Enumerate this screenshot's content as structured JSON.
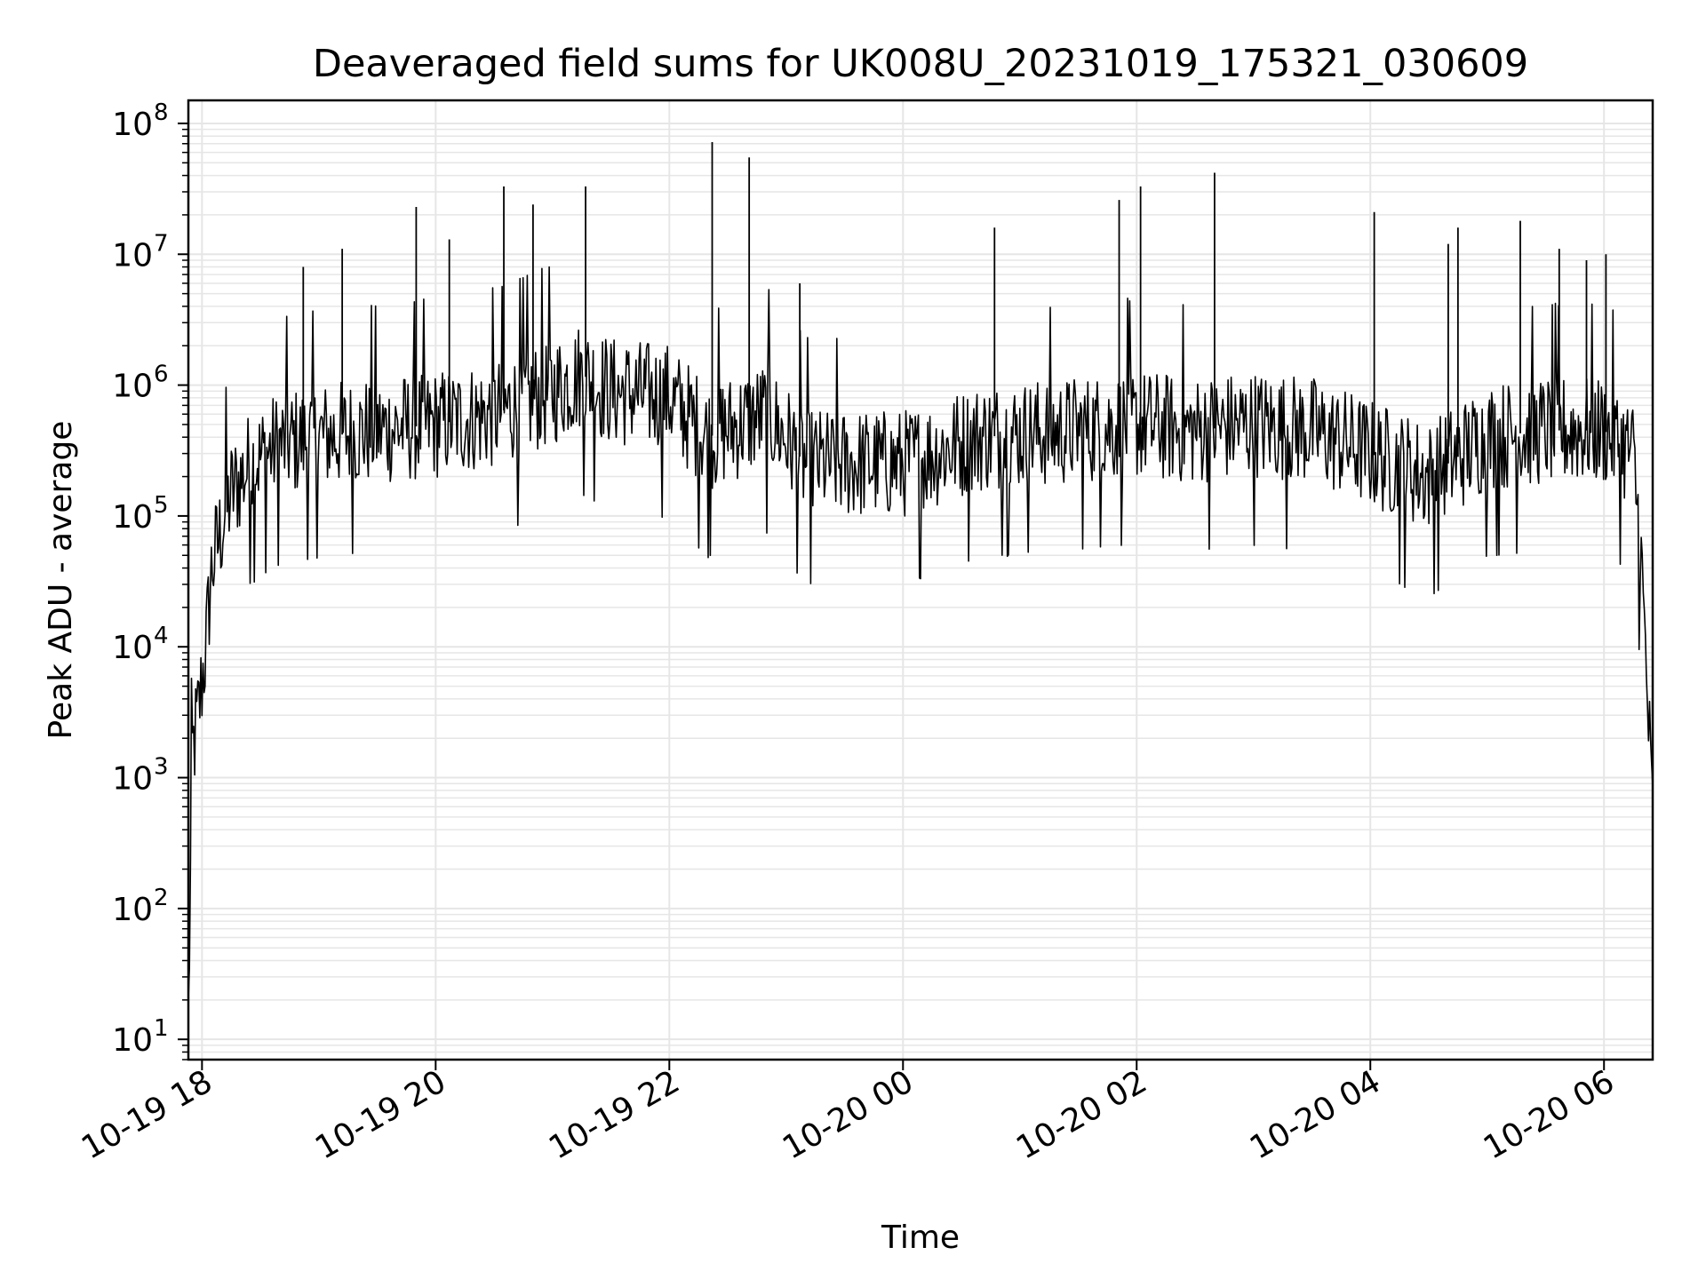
{
  "chart_data": {
    "type": "line",
    "title": "Deaveraged field sums for UK008U_20231019_175321_030609",
    "xlabel": "Time",
    "ylabel": "Peak ADU - average",
    "yscale": "log",
    "ylim": [
      7,
      150000000
    ],
    "xlim": [
      "2023-10-19 17:53",
      "2023-10-20 06:25"
    ],
    "grid": true,
    "x_ticks": [
      {
        "value": "2023-10-19 18:00",
        "label": "10-19 18"
      },
      {
        "value": "2023-10-19 20:00",
        "label": "10-19 20"
      },
      {
        "value": "2023-10-19 22:00",
        "label": "10-19 22"
      },
      {
        "value": "2023-10-20 00:00",
        "label": "10-20 00"
      },
      {
        "value": "2023-10-20 02:00",
        "label": "10-20 02"
      },
      {
        "value": "2023-10-20 04:00",
        "label": "10-20 04"
      },
      {
        "value": "2023-10-20 06:00",
        "label": "10-20 06"
      }
    ],
    "y_ticks": [
      {
        "value": 10,
        "base": "10",
        "exp": "1"
      },
      {
        "value": 100,
        "base": "10",
        "exp": "2"
      },
      {
        "value": 1000,
        "base": "10",
        "exp": "3"
      },
      {
        "value": 10000,
        "base": "10",
        "exp": "4"
      },
      {
        "value": 100000,
        "base": "10",
        "exp": "5"
      },
      {
        "value": 1000000,
        "base": "10",
        "exp": "6"
      },
      {
        "value": 10000000,
        "base": "10",
        "exp": "7"
      },
      {
        "value": 100000000,
        "base": "10",
        "exp": "8"
      }
    ],
    "line_color": "#000000",
    "grid_color": "#e6e6e6",
    "series": [
      {
        "name": "",
        "points": [
          {
            "x": "2023-10-19 17:53",
            "y": 15
          },
          {
            "x": "2023-10-19 17:55",
            "y": 1500
          },
          {
            "x": "2023-10-19 17:58",
            "y": 3000
          },
          {
            "x": "2023-10-19 18:02",
            "y": 10000
          },
          {
            "x": "2023-10-19 18:05",
            "y": 40000
          },
          {
            "x": "2023-10-19 18:10",
            "y": 80000
          },
          {
            "x": "2023-10-19 18:15",
            "y": 150000
          },
          {
            "x": "2023-10-19 18:25",
            "y": 250000
          },
          {
            "x": "2023-10-19 18:40",
            "y": 350000
          },
          {
            "x": "2023-10-19 19:00",
            "y": 400000
          },
          {
            "x": "2023-10-19 19:30",
            "y": 450000
          },
          {
            "x": "2023-10-19 20:00",
            "y": 500000
          },
          {
            "x": "2023-10-19 20:30",
            "y": 600000
          },
          {
            "x": "2023-10-19 21:00",
            "y": 900000
          },
          {
            "x": "2023-10-19 21:15",
            "y": 1200000
          },
          {
            "x": "2023-10-19 21:30",
            "y": 900000
          },
          {
            "x": "2023-10-19 22:00",
            "y": 800000
          },
          {
            "x": "2023-10-19 22:20",
            "y": 400000
          },
          {
            "x": "2023-10-19 22:50",
            "y": 600000
          },
          {
            "x": "2023-10-19 23:10",
            "y": 250000
          },
          {
            "x": "2023-10-20 00:00",
            "y": 250000
          },
          {
            "x": "2023-10-20 00:40",
            "y": 400000
          },
          {
            "x": "2023-10-20 01:30",
            "y": 450000
          },
          {
            "x": "2023-10-20 02:00",
            "y": 500000
          },
          {
            "x": "2023-10-20 02:30",
            "y": 450000
          },
          {
            "x": "2023-10-20 03:00",
            "y": 500000
          },
          {
            "x": "2023-10-20 03:30",
            "y": 450000
          },
          {
            "x": "2023-10-20 04:00",
            "y": 300000
          },
          {
            "x": "2023-10-20 04:30",
            "y": 200000
          },
          {
            "x": "2023-10-20 05:00",
            "y": 400000
          },
          {
            "x": "2023-10-20 05:30",
            "y": 450000
          },
          {
            "x": "2023-10-20 06:00",
            "y": 450000
          },
          {
            "x": "2023-10-20 06:15",
            "y": 300000
          },
          {
            "x": "2023-10-20 06:19",
            "y": 50000
          },
          {
            "x": "2023-10-20 06:22",
            "y": 5000
          },
          {
            "x": "2023-10-20 06:25",
            "y": 500
          }
        ],
        "spikes": [
          {
            "x": "2023-10-19 18:52",
            "y": 8000000
          },
          {
            "x": "2023-10-19 19:12",
            "y": 11000000
          },
          {
            "x": "2023-10-19 19:50",
            "y": 23000000
          },
          {
            "x": "2023-10-19 20:07",
            "y": 13000000
          },
          {
            "x": "2023-10-19 20:35",
            "y": 33000000
          },
          {
            "x": "2023-10-19 20:50",
            "y": 24000000
          },
          {
            "x": "2023-10-19 21:17",
            "y": 33000000
          },
          {
            "x": "2023-10-19 22:22",
            "y": 72000000
          },
          {
            "x": "2023-10-19 22:41",
            "y": 55000000
          },
          {
            "x": "2023-10-19 23:07",
            "y": 6000000
          },
          {
            "x": "2023-10-20 00:47",
            "y": 16000000
          },
          {
            "x": "2023-10-20 01:51",
            "y": 26000000
          },
          {
            "x": "2023-10-20 02:02",
            "y": 33000000
          },
          {
            "x": "2023-10-20 02:40",
            "y": 42000000
          },
          {
            "x": "2023-10-20 04:02",
            "y": 21000000
          },
          {
            "x": "2023-10-20 04:40",
            "y": 12000000
          },
          {
            "x": "2023-10-20 04:45",
            "y": 16000000
          },
          {
            "x": "2023-10-20 05:17",
            "y": 18000000
          },
          {
            "x": "2023-10-20 05:37",
            "y": 11000000
          },
          {
            "x": "2023-10-20 05:51",
            "y": 9000000
          },
          {
            "x": "2023-10-20 06:01",
            "y": 10000000
          }
        ]
      }
    ]
  }
}
